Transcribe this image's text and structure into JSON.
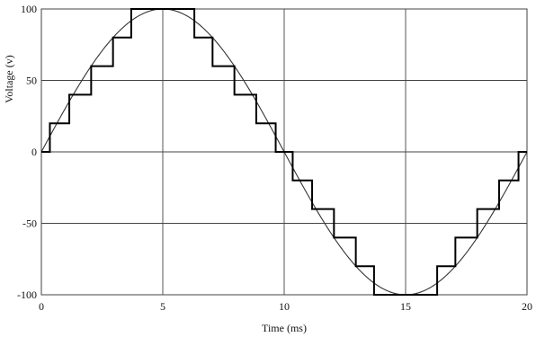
{
  "chart_data": {
    "type": "line",
    "title": "",
    "xlabel": "Time (ms)",
    "ylabel": "Voltage (v)",
    "xlim": [
      0,
      20
    ],
    "ylim": [
      -100,
      100
    ],
    "x_ticks": [
      0,
      5,
      10,
      15,
      20
    ],
    "y_ticks": [
      100,
      50,
      0,
      -50,
      -100
    ],
    "x_tick_labels": [
      "0",
      "5",
      "10",
      "15",
      "20"
    ],
    "y_tick_labels": [
      "100",
      "50",
      "0",
      "-50",
      "-100"
    ],
    "grid": true,
    "series": [
      {
        "style": "smooth sine",
        "function": "100*sin(2*pi*t/20)",
        "period_ms": 20,
        "amplitude": 100
      },
      {
        "style": "staircase",
        "x": [
          0,
          0.35,
          0.35,
          1.15,
          1.15,
          2.05,
          2.05,
          2.95,
          2.95,
          3.7,
          3.7,
          6.3,
          6.3,
          7.05,
          7.05,
          7.95,
          7.95,
          8.85,
          8.85,
          9.65,
          9.65,
          10.35,
          10.35,
          11.15,
          11.15,
          12.05,
          12.05,
          12.95,
          12.95,
          13.7,
          13.7,
          16.3,
          16.3,
          17.05,
          17.05,
          17.95,
          17.95,
          18.85,
          18.85,
          19.65,
          19.65,
          20
        ],
        "y": [
          0,
          0,
          20,
          20,
          40,
          40,
          60,
          60,
          80,
          80,
          100,
          100,
          80,
          80,
          60,
          60,
          40,
          40,
          20,
          20,
          0,
          0,
          -20,
          -20,
          -40,
          -40,
          -60,
          -60,
          -80,
          -80,
          -100,
          -100,
          -80,
          -80,
          -60,
          -60,
          -40,
          -40,
          -20,
          -20,
          0,
          0
        ]
      }
    ]
  }
}
